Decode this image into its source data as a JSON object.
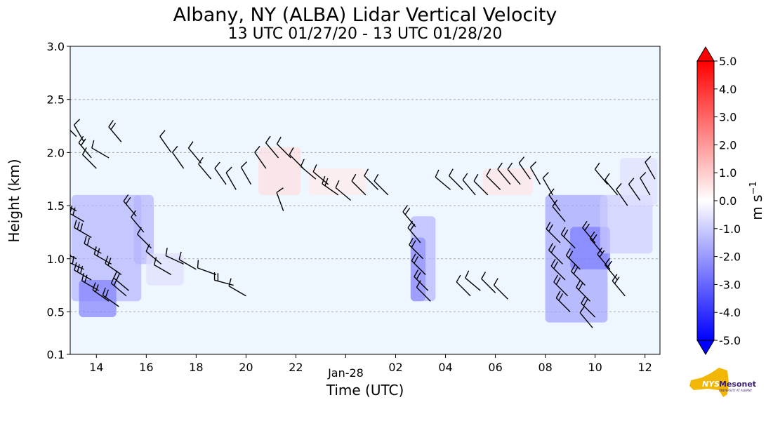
{
  "chart_data": {
    "type": "contourf",
    "title": "Albany, NY (ALBA) Lidar Vertical Velocity",
    "subtitle": "13 UTC 01/27/20 - 13 UTC 01/28/20",
    "xlabel": "Time (UTC)",
    "ylabel": "Height (km)",
    "x_ticks": [
      "14",
      "16",
      "18",
      "20",
      "22",
      "Jan-28",
      "02",
      "04",
      "06",
      "08",
      "10",
      "12"
    ],
    "x_tick_hours": [
      14,
      16,
      18,
      20,
      22,
      24,
      26,
      28,
      30,
      32,
      34,
      36
    ],
    "xlim": [
      12.95,
      36.6
    ],
    "ylim": [
      0.1,
      3.0
    ],
    "y_ticks": [
      0.1,
      0.5,
      1.0,
      1.5,
      2.0,
      2.5,
      3.0
    ],
    "y_tick_labels": [
      "0.1",
      "0.5",
      "1.0",
      "1.5",
      "2.0",
      "2.5",
      "3.0"
    ],
    "grid": "horizontal dashed",
    "colorbar": {
      "label": "m s",
      "label_exponent": "−1",
      "min": -5.0,
      "max": 5.0,
      "ticks": [
        "5.0",
        "4.0",
        "3.0",
        "2.0",
        "1.0",
        "0.0",
        "-1.0",
        "-2.0",
        "-3.0",
        "-4.0",
        "-5.0"
      ],
      "colormap": "bwr",
      "extend": "both"
    },
    "velocity_regions": [
      {
        "t0": 13.0,
        "t1": 15.8,
        "h0": 0.6,
        "h1": 1.6,
        "w": -1.5
      },
      {
        "t0": 13.3,
        "t1": 14.8,
        "h0": 0.45,
        "h1": 0.8,
        "w": -2.5
      },
      {
        "t0": 15.5,
        "t1": 16.3,
        "h0": 0.95,
        "h1": 1.6,
        "w": -1.5
      },
      {
        "t0": 16.0,
        "t1": 17.5,
        "h0": 0.75,
        "h1": 1.05,
        "w": -0.6
      },
      {
        "t0": 20.5,
        "t1": 22.2,
        "h0": 1.6,
        "h1": 2.05,
        "w": 0.6
      },
      {
        "t0": 22.5,
        "t1": 24.8,
        "h0": 1.6,
        "h1": 1.85,
        "w": 0.4
      },
      {
        "t0": 26.6,
        "t1": 27.6,
        "h0": 0.6,
        "h1": 1.4,
        "w": -1.5
      },
      {
        "t0": 26.6,
        "t1": 27.2,
        "h0": 0.6,
        "h1": 1.2,
        "w": -2.2
      },
      {
        "t0": 29.5,
        "t1": 31.5,
        "h0": 1.6,
        "h1": 1.85,
        "w": 0.5
      },
      {
        "t0": 32.0,
        "t1": 34.5,
        "h0": 0.4,
        "h1": 1.6,
        "w": -1.8
      },
      {
        "t0": 33.0,
        "t1": 34.6,
        "h0": 0.9,
        "h1": 1.3,
        "w": -2.6
      },
      {
        "t0": 34.2,
        "t1": 36.3,
        "h0": 1.05,
        "h1": 1.6,
        "w": -1.0
      },
      {
        "t0": 35.0,
        "t1": 36.5,
        "h0": 1.5,
        "h1": 1.95,
        "w": -0.6
      }
    ],
    "wind_barbs": [
      [
        13.2,
        2.15,
        45,
        10
      ],
      [
        13.5,
        2.1,
        30,
        10
      ],
      [
        13.8,
        1.95,
        40,
        15
      ],
      [
        14.0,
        1.85,
        45,
        10
      ],
      [
        14.5,
        1.95,
        60,
        10
      ],
      [
        15.0,
        2.1,
        40,
        15
      ],
      [
        13.2,
        1.45,
        60,
        20
      ],
      [
        13.5,
        1.35,
        60,
        25
      ],
      [
        13.8,
        1.2,
        60,
        25
      ],
      [
        14.2,
        1.05,
        60,
        20
      ],
      [
        14.6,
        0.95,
        60,
        20
      ],
      [
        15.0,
        0.85,
        55,
        20
      ],
      [
        15.3,
        0.7,
        50,
        15
      ],
      [
        13.2,
        1.0,
        65,
        25
      ],
      [
        13.5,
        0.9,
        65,
        25
      ],
      [
        13.8,
        0.8,
        60,
        25
      ],
      [
        14.1,
        0.7,
        60,
        20
      ],
      [
        14.5,
        0.6,
        55,
        20
      ],
      [
        14.9,
        0.55,
        55,
        15
      ],
      [
        15.2,
        0.65,
        50,
        15
      ],
      [
        15.6,
        1.4,
        40,
        15
      ],
      [
        15.9,
        1.25,
        40,
        10
      ],
      [
        16.2,
        1.1,
        45,
        10
      ],
      [
        16.6,
        0.95,
        50,
        10
      ],
      [
        17.0,
        0.85,
        60,
        10
      ],
      [
        17.5,
        0.95,
        65,
        10
      ],
      [
        18.0,
        0.9,
        60,
        10
      ],
      [
        18.8,
        0.85,
        70,
        10
      ],
      [
        19.5,
        0.75,
        75,
        15
      ],
      [
        20.0,
        0.65,
        60,
        10
      ],
      [
        17.0,
        2.0,
        35,
        10
      ],
      [
        17.5,
        1.85,
        35,
        10
      ],
      [
        18.2,
        1.9,
        40,
        10
      ],
      [
        18.6,
        1.75,
        40,
        10
      ],
      [
        19.2,
        1.7,
        35,
        10
      ],
      [
        19.6,
        1.65,
        30,
        10
      ],
      [
        20.2,
        1.7,
        30,
        10
      ],
      [
        20.8,
        1.85,
        35,
        10
      ],
      [
        21.3,
        1.95,
        40,
        10
      ],
      [
        21.8,
        1.95,
        45,
        10
      ],
      [
        22.3,
        1.85,
        45,
        10
      ],
      [
        22.8,
        1.75,
        50,
        10
      ],
      [
        23.3,
        1.7,
        50,
        10
      ],
      [
        23.7,
        1.6,
        55,
        15
      ],
      [
        24.2,
        1.55,
        50,
        10
      ],
      [
        24.8,
        1.6,
        45,
        10
      ],
      [
        25.3,
        1.65,
        45,
        10
      ],
      [
        25.7,
        1.6,
        45,
        10
      ],
      [
        21.5,
        1.45,
        20,
        10
      ],
      [
        26.8,
        1.3,
        40,
        15
      ],
      [
        27.0,
        1.15,
        40,
        15
      ],
      [
        27.1,
        1.0,
        45,
        15
      ],
      [
        27.2,
        0.85,
        45,
        15
      ],
      [
        27.3,
        0.7,
        45,
        15
      ],
      [
        27.4,
        0.6,
        45,
        10
      ],
      [
        28.2,
        1.65,
        50,
        10
      ],
      [
        28.7,
        1.65,
        45,
        10
      ],
      [
        29.2,
        1.6,
        40,
        10
      ],
      [
        29.7,
        1.6,
        45,
        10
      ],
      [
        30.2,
        1.65,
        45,
        10
      ],
      [
        30.6,
        1.7,
        40,
        10
      ],
      [
        31.0,
        1.7,
        40,
        10
      ],
      [
        31.4,
        1.75,
        35,
        10
      ],
      [
        31.8,
        1.7,
        30,
        10
      ],
      [
        32.3,
        1.6,
        30,
        10
      ],
      [
        32.6,
        1.45,
        35,
        10
      ],
      [
        32.8,
        1.35,
        40,
        10
      ],
      [
        29.0,
        0.65,
        45,
        10
      ],
      [
        29.4,
        0.7,
        50,
        10
      ],
      [
        30.0,
        0.68,
        45,
        10
      ],
      [
        30.5,
        0.62,
        45,
        10
      ],
      [
        32.6,
        1.15,
        45,
        20
      ],
      [
        32.7,
        0.95,
        45,
        20
      ],
      [
        32.8,
        0.8,
        45,
        20
      ],
      [
        32.9,
        0.65,
        45,
        20
      ],
      [
        33.0,
        0.5,
        45,
        15
      ],
      [
        33.2,
        1.1,
        45,
        20
      ],
      [
        33.4,
        0.9,
        45,
        20
      ],
      [
        33.6,
        0.75,
        45,
        20
      ],
      [
        33.8,
        0.6,
        45,
        20
      ],
      [
        34.0,
        0.45,
        45,
        15
      ],
      [
        33.9,
        0.35,
        40,
        10
      ],
      [
        34.0,
        1.15,
        40,
        15
      ],
      [
        34.3,
        1.05,
        40,
        15
      ],
      [
        34.6,
        0.9,
        40,
        15
      ],
      [
        34.9,
        0.8,
        40,
        15
      ],
      [
        35.2,
        0.65,
        40,
        15
      ],
      [
        34.5,
        1.7,
        40,
        10
      ],
      [
        34.9,
        1.6,
        40,
        10
      ],
      [
        35.3,
        1.5,
        35,
        10
      ],
      [
        35.8,
        1.55,
        35,
        10
      ],
      [
        36.2,
        1.6,
        30,
        10
      ],
      [
        36.4,
        1.75,
        30,
        10
      ]
    ]
  },
  "logo": {
    "nys": "NYS",
    "mesonet": "Mesonet",
    "university": "UNIVERSITY AT ALBANY"
  }
}
